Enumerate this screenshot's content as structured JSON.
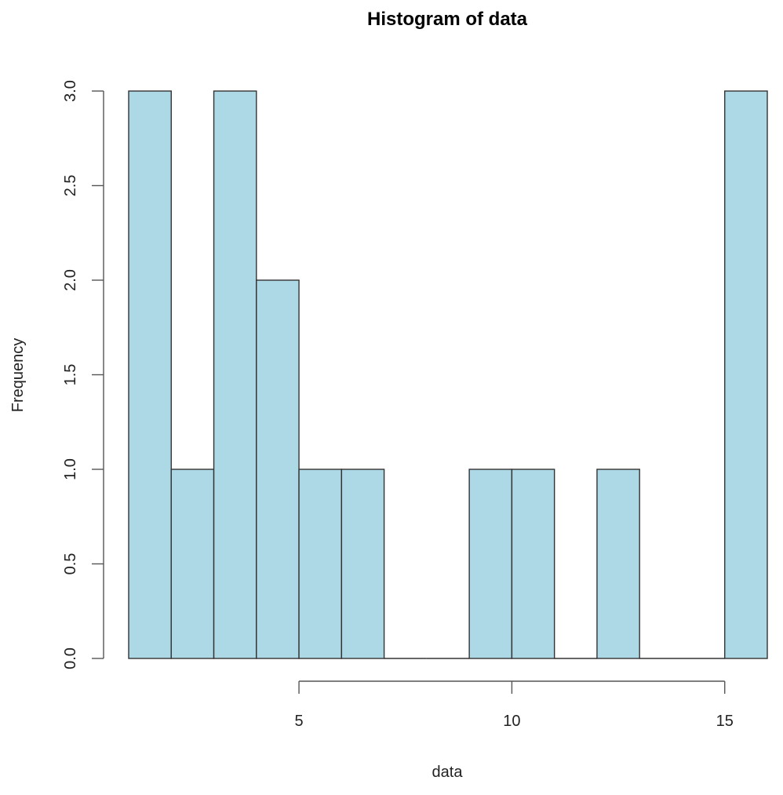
{
  "chart_data": {
    "type": "bar",
    "subtype": "histogram",
    "title": "Histogram of data",
    "xlabel": "data",
    "ylabel": "Frequency",
    "bin_edges": [
      1,
      2,
      3,
      4,
      5,
      6,
      7,
      8,
      9,
      10,
      11,
      12,
      13,
      14,
      15,
      16
    ],
    "categories": [
      "1-2",
      "2-3",
      "3-4",
      "4-5",
      "5-6",
      "6-7",
      "7-8",
      "8-9",
      "9-10",
      "10-11",
      "11-12",
      "12-13",
      "13-14",
      "14-15",
      "15-16"
    ],
    "values": [
      3,
      1,
      3,
      2,
      1,
      1,
      0,
      0,
      1,
      1,
      0,
      1,
      0,
      0,
      3
    ],
    "xlim": [
      1,
      16
    ],
    "ylim": [
      0,
      3
    ],
    "x_ticks": [
      5,
      10,
      15
    ],
    "y_ticks": [
      "0.0",
      "0.5",
      "1.0",
      "1.5",
      "2.0",
      "2.5",
      "3.0"
    ],
    "bar_color": "#ADD8E6",
    "edge_color": "#000000",
    "grid": false,
    "legend": null
  }
}
